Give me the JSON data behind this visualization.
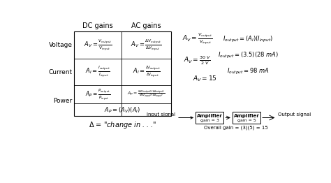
{
  "bg_color": "#ffffff",
  "row_labels": [
    "Voltage",
    "Current",
    "Power"
  ],
  "col_headers": [
    "DC gains",
    "AC gains"
  ],
  "amplifier_label1": "Amplifier",
  "amplifier_sublabel1": "gain = 3",
  "amplifier_label2": "Amplifier",
  "amplifier_sublabel2": "gain = 5",
  "overall_gain": "Overall gain = (3)(5) = 15",
  "input_signal": "Input signal",
  "output_signal": "Output signal"
}
